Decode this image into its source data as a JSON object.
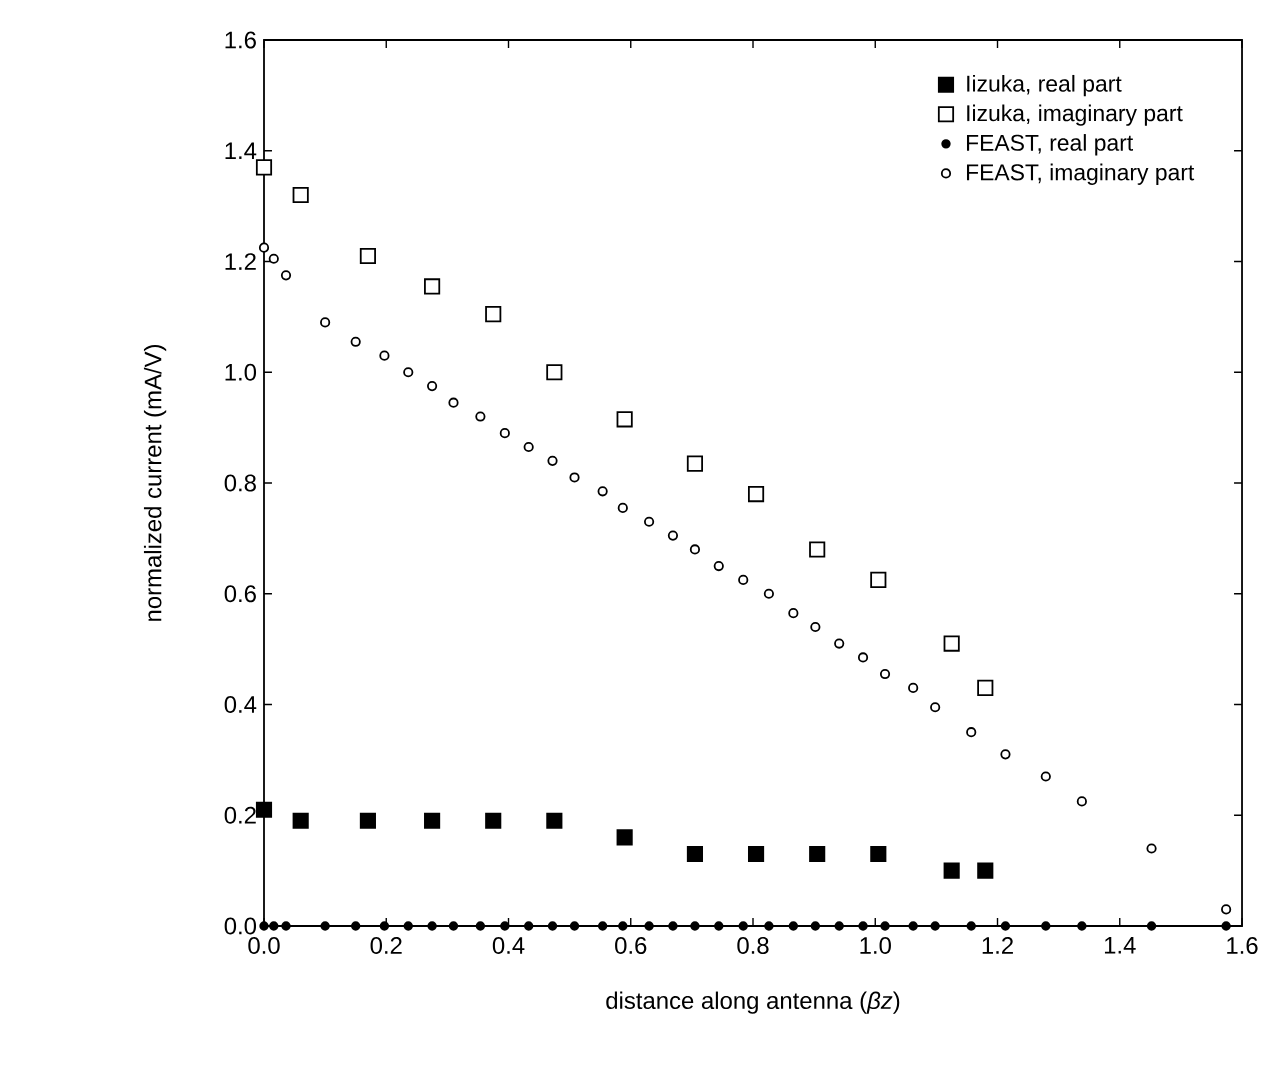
{
  "chart_data": {
    "type": "scatter",
    "xlabel": "distance along antenna  (*βz*)",
    "ylabel": "normalized current (mA/V)",
    "xlim": [
      0,
      1.6
    ],
    "ylim": [
      0,
      1.6
    ],
    "xticks": [
      {
        "value": 0,
        "label": "0.0"
      },
      0.2,
      0.4,
      0.6,
      0.8,
      {
        "value": 1,
        "label": "1.0"
      },
      1.2,
      1.4,
      1.6
    ],
    "yticks": [
      {
        "value": 0,
        "label": "0.0"
      },
      0.2,
      0.4,
      0.6,
      0.8,
      {
        "value": 1,
        "label": "1.0"
      },
      1.2,
      1.4,
      1.6
    ],
    "grid": false,
    "legend": "top right",
    "series": [
      {
        "name": "Iizuka, real part",
        "color": "#000000",
        "marker": "square",
        "x": [
          0,
          0.06,
          0.17,
          0.275,
          0.375,
          0.475,
          0.59,
          0.705,
          0.805,
          0.905,
          1.005,
          1.125,
          1.18
        ],
        "values": [
          0.21,
          0.19,
          0.19,
          0.19,
          0.19,
          0.19,
          0.16,
          0.13,
          0.13,
          0.13,
          0.13,
          0.1,
          0.1
        ]
      },
      {
        "name": "Iizuka, imaginary part",
        "color": "#ffffff",
        "marker": "square",
        "x": [
          0,
          0.06,
          0.17,
          0.275,
          0.375,
          0.475,
          0.59,
          0.705,
          0.805,
          0.905,
          1.005,
          1.125,
          1.18
        ],
        "values": [
          1.37,
          1.32,
          1.21,
          1.155,
          1.105,
          1.0,
          0.915,
          0.835,
          0.78,
          0.68,
          0.625,
          0.51,
          0.43
        ]
      },
      {
        "name": "FEAST, real part",
        "color": "#000000",
        "marker": "circle",
        "x": [
          0,
          0.016,
          0.036,
          0.1,
          0.15,
          0.197,
          0.236,
          0.275,
          0.31,
          0.354,
          0.394,
          0.433,
          0.472,
          0.508,
          0.554,
          0.587,
          0.63,
          0.669,
          0.705,
          0.744,
          0.784,
          0.826,
          0.866,
          0.902,
          0.941,
          0.98,
          1.016,
          1.062,
          1.098,
          1.157,
          1.213,
          1.279,
          1.338,
          1.452,
          1.574
        ],
        "values": [
          0,
          0,
          0,
          0,
          0,
          0,
          0,
          0,
          0,
          0,
          0,
          0,
          0,
          0,
          0,
          0,
          0,
          0,
          0,
          0,
          0,
          0,
          0,
          0,
          0,
          0,
          0,
          0,
          0,
          0,
          0,
          0,
          0,
          0,
          0
        ]
      },
      {
        "name": "FEAST, imaginary part",
        "color": "#ffffff",
        "marker": "circle",
        "x": [
          0,
          0.016,
          0.036,
          0.1,
          0.15,
          0.197,
          0.236,
          0.275,
          0.31,
          0.354,
          0.394,
          0.433,
          0.472,
          0.508,
          0.554,
          0.587,
          0.63,
          0.669,
          0.705,
          0.744,
          0.784,
          0.826,
          0.866,
          0.902,
          0.941,
          0.98,
          1.016,
          1.062,
          1.098,
          1.157,
          1.213,
          1.279,
          1.338,
          1.452,
          1.574
        ],
        "values": [
          1.225,
          1.205,
          1.175,
          1.09,
          1.055,
          1.03,
          1.0,
          0.975,
          0.945,
          0.92,
          0.89,
          0.865,
          0.84,
          0.81,
          0.785,
          0.755,
          0.73,
          0.705,
          0.68,
          0.65,
          0.625,
          0.6,
          0.565,
          0.54,
          0.51,
          0.485,
          0.455,
          0.43,
          0.395,
          0.35,
          0.31,
          0.27,
          0.225,
          0.14,
          0.03
        ]
      }
    ]
  }
}
